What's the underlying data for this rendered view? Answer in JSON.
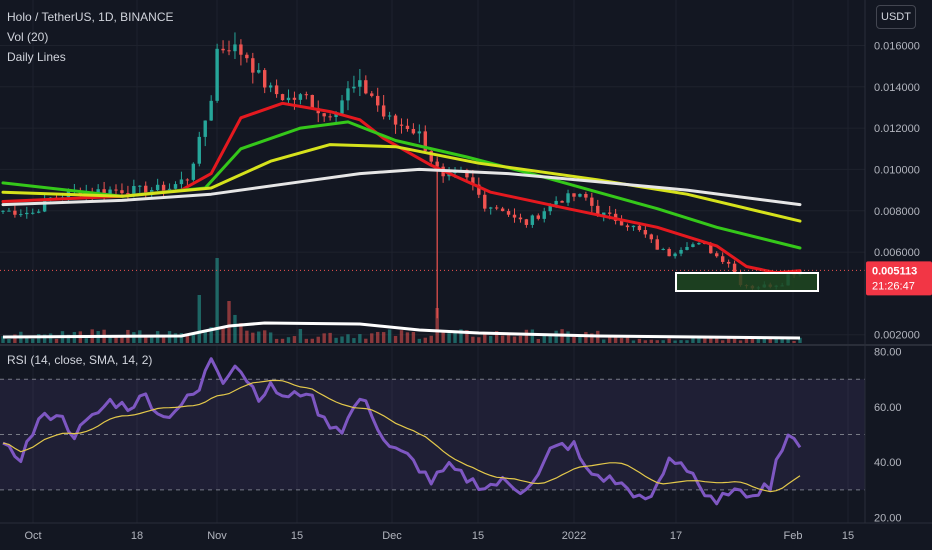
{
  "header": {
    "title": "Holo / TetherUS, 1D, BINANCE",
    "indicator_vol": "Vol (20)",
    "indicator_lines": "Daily Lines",
    "rsi_label": "RSI (14, close, SMA, 14, 2)",
    "currency": "USDT"
  },
  "price_badge": {
    "price": "0.005113",
    "countdown": "21:26:47",
    "color": "#f23645"
  },
  "colors": {
    "up": "#26a69a",
    "down": "#ef5350",
    "ma_red": "#e5191f",
    "ma_green": "#35c81a",
    "ma_yellow": "#d6e21c",
    "ma_white": "#e6e6e6",
    "rsi": "#7e57c2",
    "rsi_ma": "#e3c84b",
    "box_fill": "#1e4620"
  },
  "chart_data": [
    {
      "type": "candlestick",
      "title": "Holo / TetherUS, 1D, BINANCE",
      "y_ticks": [
        "0.016000",
        "0.014000",
        "0.012000",
        "0.010000",
        "0.008000",
        "0.006000",
        "0.002000"
      ],
      "ylim": [
        0.0016,
        0.0182
      ],
      "x_ticks": [
        "Oct",
        "18",
        "Nov",
        "15",
        "Dec",
        "15",
        "2022",
        "17",
        "Feb",
        "15"
      ],
      "current_price": 0.005113,
      "series": [
        {
          "name": "ma_red",
          "values": [
            [
              0,
              0.00845
            ],
            [
              20,
              0.0087
            ],
            [
              30,
              0.009
            ],
            [
              35,
              0.0098
            ],
            [
              40,
              0.0125
            ],
            [
              47,
              0.0132
            ],
            [
              55,
              0.0128
            ],
            [
              60,
              0.0124
            ],
            [
              64,
              0.0115
            ],
            [
              72,
              0.0102
            ],
            [
              82,
              0.0089
            ],
            [
              95,
              0.0081
            ],
            [
              110,
              0.0072
            ],
            [
              120,
              0.0063
            ],
            [
              125,
              0.0053
            ],
            [
              130,
              0.005
            ],
            [
              134,
              0.0051
            ]
          ]
        },
        {
          "name": "ma_green",
          "values": [
            [
              0,
              0.00935
            ],
            [
              20,
              0.0087
            ],
            [
              34,
              0.0091
            ],
            [
              40,
              0.011
            ],
            [
              50,
              0.012
            ],
            [
              58,
              0.0123
            ],
            [
              66,
              0.0114
            ],
            [
              78,
              0.0106
            ],
            [
              90,
              0.0097
            ],
            [
              100,
              0.0089
            ],
            [
              110,
              0.0081
            ],
            [
              120,
              0.0072
            ],
            [
              134,
              0.0062
            ]
          ]
        },
        {
          "name": "ma_yellow",
          "values": [
            [
              0,
              0.0089
            ],
            [
              20,
              0.0087
            ],
            [
              35,
              0.0091
            ],
            [
              45,
              0.0104
            ],
            [
              55,
              0.0112
            ],
            [
              66,
              0.0111
            ],
            [
              80,
              0.0103
            ],
            [
              100,
              0.0095
            ],
            [
              115,
              0.0088
            ],
            [
              134,
              0.0075
            ]
          ]
        },
        {
          "name": "ma_white",
          "values": [
            [
              0,
              0.0083
            ],
            [
              20,
              0.0085
            ],
            [
              35,
              0.0088
            ],
            [
              50,
              0.0094
            ],
            [
              60,
              0.0098
            ],
            [
              70,
              0.01
            ],
            [
              85,
              0.0098
            ],
            [
              100,
              0.0094
            ],
            [
              115,
              0.009
            ],
            [
              134,
              0.0083
            ]
          ]
        }
      ]
    },
    {
      "type": "line",
      "title": "RSI (14, close, SMA, 14, 2)",
      "y_ticks": [
        "80.00",
        "60.00",
        "40.00",
        "20.00"
      ],
      "ylim": [
        18,
        82
      ],
      "bands": [
        70,
        50,
        30
      ],
      "series": [
        {
          "name": "RSI",
          "values": []
        },
        {
          "name": "RSI SMA",
          "values": []
        }
      ]
    }
  ]
}
